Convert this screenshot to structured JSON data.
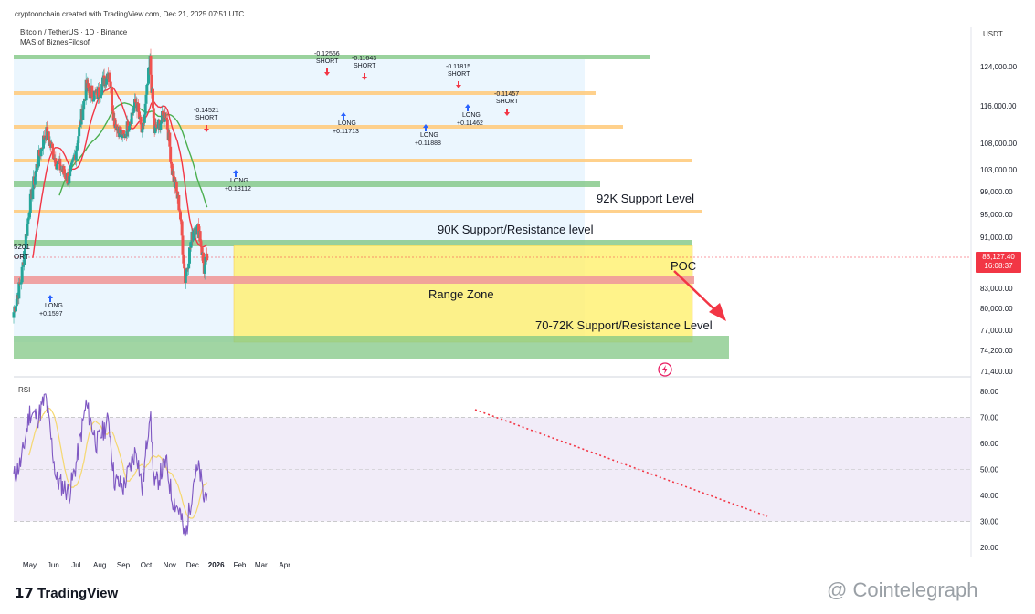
{
  "header": {
    "created": "cryptoonchain created with TradingView.com, Dec 21, 2025 07:51 UTC",
    "symbol": "Bitcoin / TetherUS · 1D · Binance",
    "indicator": "MAS of BiznesFilosof",
    "currency": "USDT"
  },
  "price_tag": {
    "price": "88,127.40",
    "time": "16:08:37"
  },
  "partial_label_left": "5201",
  "partial_label_left2": "ORT",
  "footer": {
    "logo": "TradingView",
    "watermark": "@ Cointelegraph"
  },
  "colors": {
    "candle_up": "#26a69a",
    "candle_down": "#ef5350",
    "ma_fast": "#f23645",
    "ma_slow": "#4caf50",
    "rsi_line": "#7e57c2",
    "rsi_ma": "#f5d76e",
    "range_zone": "#fff176",
    "green_band": "#81c784",
    "orange_band": "#ffcc80",
    "red_band": "#ef9a9a",
    "blue_band": "#e3f2fd"
  },
  "chart_data": [
    {
      "type": "candlestick",
      "title": "",
      "yticks": [
        "124,000.00",
        "116,000.00",
        "108,000.00",
        "103,000.00",
        "99,000.00",
        "95,000.00",
        "91,000.00",
        "83,000.00",
        "80,000.00",
        "77,000.00",
        "74,200.00",
        "71,400.00"
      ],
      "xticks": [
        "May",
        "Jun",
        "Jul",
        "Aug",
        "Sep",
        "Oct",
        "Nov",
        "Dec",
        "2026",
        "Feb",
        "Mar",
        "Apr"
      ],
      "close_series": [
        {
          "date": "2025-04-10",
          "close": 79500
        },
        {
          "date": "2025-04-20",
          "close": 84500
        },
        {
          "date": "2025-05-01",
          "close": 96500
        },
        {
          "date": "2025-05-10",
          "close": 103500
        },
        {
          "date": "2025-05-22",
          "close": 110500
        },
        {
          "date": "2025-06-05",
          "close": 104500
        },
        {
          "date": "2025-06-22",
          "close": 101000
        },
        {
          "date": "2025-07-01",
          "close": 107000
        },
        {
          "date": "2025-07-14",
          "close": 119500
        },
        {
          "date": "2025-07-28",
          "close": 118000
        },
        {
          "date": "2025-08-13",
          "close": 123300
        },
        {
          "date": "2025-08-20",
          "close": 113000
        },
        {
          "date": "2025-09-01",
          "close": 109000
        },
        {
          "date": "2025-09-18",
          "close": 117000
        },
        {
          "date": "2025-09-26",
          "close": 109500
        },
        {
          "date": "2025-10-06",
          "close": 125000
        },
        {
          "date": "2025-10-12",
          "close": 110500
        },
        {
          "date": "2025-10-27",
          "close": 114500
        },
        {
          "date": "2025-11-04",
          "close": 103000
        },
        {
          "date": "2025-11-14",
          "close": 96000
        },
        {
          "date": "2025-11-21",
          "close": 84500
        },
        {
          "date": "2025-12-03",
          "close": 93000
        },
        {
          "date": "2025-12-10",
          "close": 92000
        },
        {
          "date": "2025-12-16",
          "close": 86000
        },
        {
          "date": "2025-12-21",
          "close": 88127
        }
      ],
      "annotations": [
        {
          "text": "92K Support Level",
          "price": 92000
        },
        {
          "text": "90K Support/Resistance level",
          "price": 90000
        },
        {
          "text": "Range Zone",
          "price": 82000
        },
        {
          "text": "70-72K Support/Resistance Level",
          "price": 77500
        },
        {
          "text": "POC",
          "price": 86500
        }
      ],
      "signals": [
        {
          "label": "LONG",
          "value": "+0.1597"
        },
        {
          "label": "SHORT",
          "value": "-0.14521"
        },
        {
          "label": "LONG",
          "value": "+0.13112"
        },
        {
          "label": "SHORT",
          "value": "-0.12566"
        },
        {
          "label": "SHORT",
          "value": "-0.11643"
        },
        {
          "label": "LONG",
          "value": "+0.11713"
        },
        {
          "label": "LONG",
          "value": "+0.11888"
        },
        {
          "label": "SHORT",
          "value": "-0.11815"
        },
        {
          "label": "LONG",
          "value": "+0.11462"
        },
        {
          "label": "SHORT",
          "value": "-0.11457"
        }
      ]
    },
    {
      "type": "line",
      "title": "RSI",
      "yticks": [
        "80.00",
        "70.00",
        "60.00",
        "50.00",
        "40.00",
        "30.00",
        "20.00"
      ],
      "ylim": [
        20,
        80
      ],
      "levels": [
        70,
        50,
        30
      ],
      "series": [
        {
          "values": [
            {
              "date": "2025-04-10",
              "value": 47
            },
            {
              "date": "2025-04-20",
              "value": 53
            },
            {
              "date": "2025-05-01",
              "value": 72
            },
            {
              "date": "2025-05-12",
              "value": 70
            },
            {
              "date": "2025-05-22",
              "value": 78
            },
            {
              "date": "2025-06-05",
              "value": 46
            },
            {
              "date": "2025-06-22",
              "value": 41
            },
            {
              "date": "2025-07-01",
              "value": 52
            },
            {
              "date": "2025-07-14",
              "value": 75
            },
            {
              "date": "2025-07-28",
              "value": 60
            },
            {
              "date": "2025-08-13",
              "value": 69
            },
            {
              "date": "2025-08-20",
              "value": 46
            },
            {
              "date": "2025-09-01",
              "value": 43
            },
            {
              "date": "2025-09-18",
              "value": 58
            },
            {
              "date": "2025-09-26",
              "value": 42
            },
            {
              "date": "2025-10-06",
              "value": 73
            },
            {
              "date": "2025-10-12",
              "value": 43
            },
            {
              "date": "2025-10-27",
              "value": 53
            },
            {
              "date": "2025-11-04",
              "value": 39
            },
            {
              "date": "2025-11-14",
              "value": 34
            },
            {
              "date": "2025-11-21",
              "value": 23
            },
            {
              "date": "2025-12-03",
              "value": 47
            },
            {
              "date": "2025-12-10",
              "value": 50
            },
            {
              "date": "2025-12-16",
              "value": 38
            },
            {
              "date": "2025-12-21",
              "value": 45
            }
          ]
        }
      ]
    }
  ]
}
